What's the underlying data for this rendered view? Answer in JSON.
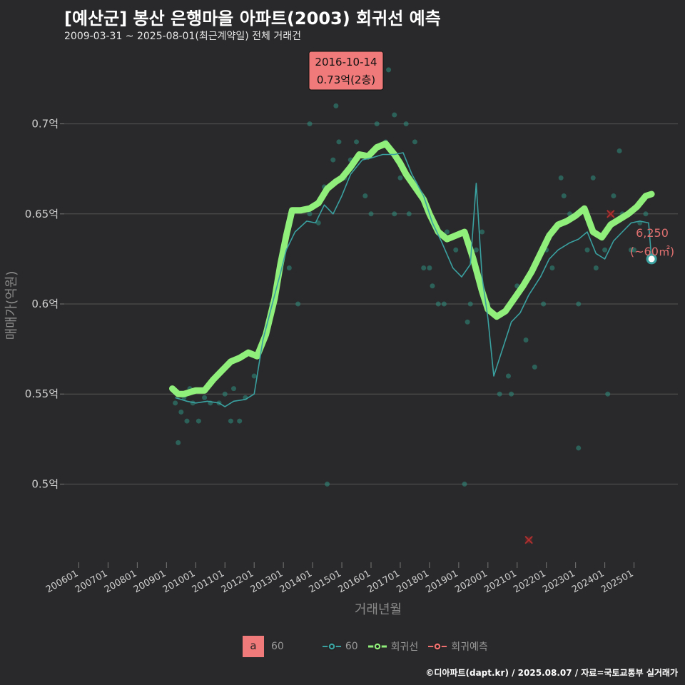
{
  "title": "[예산군] 봉산 은행마을 아파트(2003) 회귀선 예측",
  "subtitle": "2009-03-31 ~ 2025-08-01(최근계약일) 전체 거래건",
  "footer": "©디아파트(dapt.kr) / 2025.08.07 / 자료=국토교통부 실거래가",
  "colors": {
    "background": "#29292b",
    "grid": "#555555",
    "trend": "#3aa0a0",
    "regression": "#90ee7a",
    "prediction": "#f07070",
    "scatter": "#2f8f7f"
  },
  "annotation": {
    "date": "2016-10-14",
    "value": "0.73억(2층)"
  },
  "last_label": {
    "price": "6,250",
    "area": "(~60㎡)"
  },
  "legend": {
    "a_box": "a",
    "a_label": "60",
    "trend_label": "60",
    "regression_label": "회귀선",
    "prediction_label": "회귀예측"
  },
  "chart_data": {
    "type": "line",
    "title": "[예산군] 봉산 은행마을 아파트(2003) 회귀선 예측",
    "xlabel": "거래년월",
    "ylabel": "매매가(억원)",
    "xlim": [
      2005.5,
      2026.5
    ],
    "ylim": [
      0.455,
      0.745
    ],
    "x_ticks": [
      {
        "value": 2006,
        "label": "200601"
      },
      {
        "value": 2007,
        "label": "200701"
      },
      {
        "value": 2008,
        "label": "200801"
      },
      {
        "value": 2009,
        "label": "200901"
      },
      {
        "value": 2010,
        "label": "201001"
      },
      {
        "value": 2011,
        "label": "201101"
      },
      {
        "value": 2012,
        "label": "201201"
      },
      {
        "value": 2013,
        "label": "201301"
      },
      {
        "value": 2014,
        "label": "201401"
      },
      {
        "value": 2015,
        "label": "201501"
      },
      {
        "value": 2016,
        "label": "201601"
      },
      {
        "value": 2017,
        "label": "201701"
      },
      {
        "value": 2018,
        "label": "201801"
      },
      {
        "value": 2019,
        "label": "201901"
      },
      {
        "value": 2020,
        "label": "202001"
      },
      {
        "value": 2021,
        "label": "202101"
      },
      {
        "value": 2022,
        "label": "202201"
      },
      {
        "value": 2023,
        "label": "202301"
      },
      {
        "value": 2024,
        "label": "202401"
      },
      {
        "value": 2025,
        "label": "202501"
      }
    ],
    "y_ticks": [
      {
        "value": 0.5,
        "label": "0.5억"
      },
      {
        "value": 0.55,
        "label": "0.55억"
      },
      {
        "value": 0.6,
        "label": "0.6억"
      },
      {
        "value": 0.65,
        "label": "0.65억"
      },
      {
        "value": 0.7,
        "label": "0.7억"
      }
    ],
    "series": [
      {
        "name": "회귀선",
        "x": [
          2009.2,
          2009.4,
          2009.6,
          2009.8,
          2010.0,
          2010.3,
          2010.6,
          2010.9,
          2011.2,
          2011.5,
          2011.8,
          2012.1,
          2012.4,
          2012.7,
          2012.9,
          2013.1,
          2013.3,
          2013.6,
          2013.9,
          2014.2,
          2014.5,
          2014.8,
          2015.0,
          2015.3,
          2015.6,
          2015.9,
          2016.2,
          2016.5,
          2016.8,
          2017.0,
          2017.2,
          2017.5,
          2017.8,
          2018.0,
          2018.3,
          2018.6,
          2018.9,
          2019.2,
          2019.5,
          2019.8,
          2020.0,
          2020.3,
          2020.6,
          2020.9,
          2021.2,
          2021.5,
          2021.8,
          2022.1,
          2022.4,
          2022.7,
          2023.0,
          2023.3,
          2023.6,
          2023.9,
          2024.2,
          2024.5,
          2024.8,
          2025.1,
          2025.4,
          2025.6
        ],
        "values": [
          0.553,
          0.55,
          0.55,
          0.551,
          0.552,
          0.552,
          0.558,
          0.563,
          0.568,
          0.57,
          0.573,
          0.571,
          0.583,
          0.603,
          0.622,
          0.638,
          0.652,
          0.652,
          0.653,
          0.656,
          0.664,
          0.668,
          0.67,
          0.676,
          0.683,
          0.682,
          0.687,
          0.689,
          0.683,
          0.678,
          0.672,
          0.665,
          0.658,
          0.65,
          0.64,
          0.636,
          0.638,
          0.64,
          0.625,
          0.607,
          0.597,
          0.593,
          0.596,
          0.603,
          0.61,
          0.618,
          0.628,
          0.638,
          0.644,
          0.646,
          0.649,
          0.653,
          0.64,
          0.637,
          0.644,
          0.647,
          0.65,
          0.654,
          0.66,
          0.661
        ]
      },
      {
        "name": "60",
        "x": [
          2009.3,
          2009.7,
          2010.0,
          2010.4,
          2010.8,
          2011.0,
          2011.3,
          2011.7,
          2012.0,
          2012.3,
          2012.7,
          2012.9,
          2013.1,
          2013.4,
          2013.8,
          2014.1,
          2014.4,
          2014.7,
          2015.0,
          2015.3,
          2015.7,
          2016.0,
          2016.4,
          2016.8,
          2017.1,
          2017.4,
          2017.8,
          2018.1,
          2018.4,
          2018.8,
          2019.1,
          2019.4,
          2019.6,
          2019.8,
          2020.0,
          2020.2,
          2020.5,
          2020.8,
          2021.1,
          2021.4,
          2021.8,
          2022.1,
          2022.4,
          2022.8,
          2023.1,
          2023.4,
          2023.7,
          2024.0,
          2024.3,
          2024.6,
          2024.9,
          2025.2,
          2025.5,
          2025.6
        ],
        "values": [
          0.548,
          0.546,
          0.545,
          0.546,
          0.545,
          0.543,
          0.546,
          0.547,
          0.55,
          0.58,
          0.605,
          0.617,
          0.63,
          0.64,
          0.646,
          0.645,
          0.655,
          0.65,
          0.66,
          0.672,
          0.68,
          0.681,
          0.683,
          0.683,
          0.684,
          0.672,
          0.66,
          0.645,
          0.635,
          0.62,
          0.615,
          0.622,
          0.667,
          0.615,
          0.592,
          0.56,
          0.575,
          0.59,
          0.595,
          0.605,
          0.615,
          0.625,
          0.63,
          0.634,
          0.636,
          0.64,
          0.628,
          0.625,
          0.635,
          0.64,
          0.645,
          0.646,
          0.645,
          0.625
        ]
      },
      {
        "name": "회귀예측",
        "x": [
          2021.4,
          2024.2
        ],
        "values": [
          0.469,
          0.65
        ]
      }
    ],
    "scatter": {
      "x": [
        2009.2,
        2009.3,
        2009.4,
        2009.5,
        2009.6,
        2009.7,
        2009.8,
        2009.9,
        2010.1,
        2010.3,
        2010.5,
        2010.8,
        2011.0,
        2011.2,
        2011.3,
        2011.5,
        2011.7,
        2012.0,
        2012.3,
        2012.6,
        2012.9,
        2013.2,
        2013.5,
        2013.9,
        2014.2,
        2014.4,
        2014.7,
        2014.9,
        2015.1,
        2015.3,
        2015.5,
        2015.8,
        2016.0,
        2016.2,
        2016.5,
        2016.8,
        2017.0,
        2017.2,
        2017.5,
        2017.8,
        2018.1,
        2018.3,
        2018.6,
        2018.9,
        2019.3,
        2019.6,
        2019.8,
        2020.0,
        2020.4,
        2020.7,
        2021.0,
        2021.3,
        2021.6,
        2021.9,
        2022.2,
        2022.5,
        2022.8,
        2023.1,
        2023.4,
        2023.7,
        2024.0,
        2024.3,
        2024.6,
        2024.9,
        2025.2,
        2025.4,
        2013.9,
        2014.5,
        2015.6,
        2016.6,
        2016.8,
        2017.3,
        2018.5,
        2019.2,
        2020.8,
        2022.0,
        2022.6,
        2023.6,
        2024.5,
        2025.0,
        2023.1,
        2024.1,
        2014.8,
        2018.0,
        2019.4
      ],
      "values": [
        0.553,
        0.545,
        0.523,
        0.54,
        0.548,
        0.535,
        0.553,
        0.545,
        0.535,
        0.548,
        0.545,
        0.545,
        0.55,
        0.535,
        0.553,
        0.535,
        0.548,
        0.56,
        0.58,
        0.6,
        0.62,
        0.62,
        0.6,
        0.65,
        0.645,
        0.665,
        0.68,
        0.69,
        0.67,
        0.68,
        0.69,
        0.66,
        0.65,
        0.7,
        0.69,
        0.65,
        0.67,
        0.7,
        0.69,
        0.62,
        0.61,
        0.6,
        0.64,
        0.63,
        0.59,
        0.63,
        0.64,
        0.6,
        0.55,
        0.56,
        0.61,
        0.58,
        0.565,
        0.6,
        0.62,
        0.67,
        0.65,
        0.6,
        0.63,
        0.62,
        0.63,
        0.66,
        0.65,
        0.63,
        0.645,
        0.65,
        0.7,
        0.5,
        0.72,
        0.73,
        0.705,
        0.65,
        0.6,
        0.5,
        0.55,
        0.63,
        0.66,
        0.67,
        0.685,
        0.63,
        0.52,
        0.55,
        0.71,
        0.62,
        0.6
      ]
    },
    "last_point": {
      "x": 2025.6,
      "value": 0.625
    }
  }
}
